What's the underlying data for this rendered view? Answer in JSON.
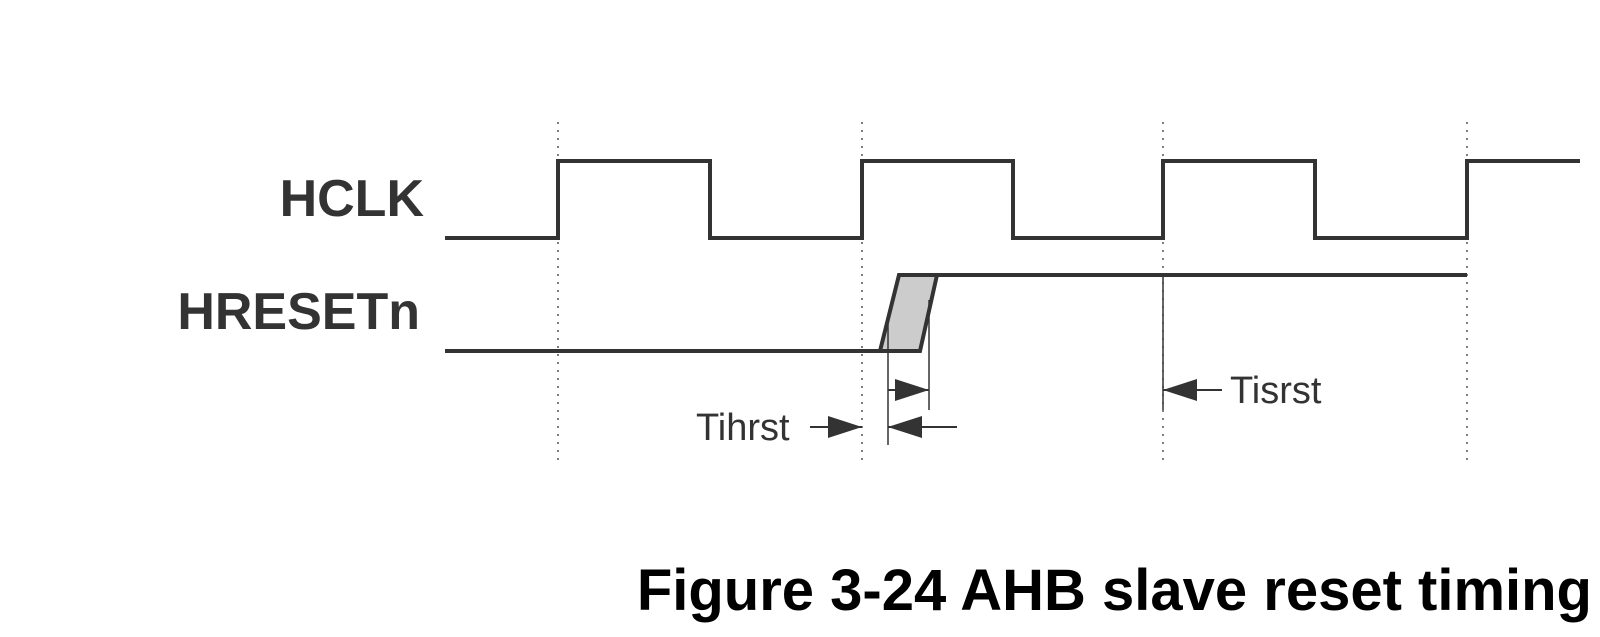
{
  "signals": {
    "hclk": {
      "label": "HCLK"
    },
    "hresetn": {
      "label": "HRESETn"
    }
  },
  "timings": {
    "hold": {
      "label": "Tihrst"
    },
    "setup": {
      "label": "Tisrst"
    }
  },
  "caption": "Figure 3-24 AHB slave reset timing",
  "colors": {
    "line": "#333333",
    "transition_fill": "#cccccc"
  }
}
